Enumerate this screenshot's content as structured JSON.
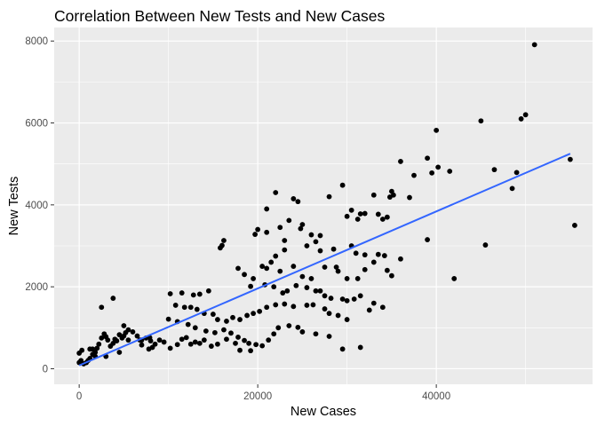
{
  "chart_data": {
    "type": "scatter",
    "title": "Correlation Between New Tests and New Cases",
    "xlabel": "New Cases",
    "ylabel": "New Tests",
    "xlim": [
      -2800,
      57500
    ],
    "ylim": [
      -380,
      8330
    ],
    "x_ticks": [
      0,
      20000,
      40000
    ],
    "x_tick_labels": [
      "0",
      "20000",
      "40000"
    ],
    "y_ticks": [
      0,
      2000,
      4000,
      6000,
      8000
    ],
    "y_tick_labels": [
      "0",
      "2000",
      "4000",
      "6000",
      "8000"
    ],
    "grid": true,
    "legend": "none",
    "colors": {
      "panel": "#ebebeb",
      "grid": "#ffffff",
      "points": "#000000",
      "trend": "#3366ff"
    },
    "trend_line": {
      "x": [
        0,
        55000
      ],
      "y": [
        80,
        5250
      ]
    },
    "points": [
      [
        7900,
        760
      ],
      [
        51000,
        7910
      ],
      [
        50000,
        6200
      ],
      [
        49500,
        6100
      ],
      [
        45000,
        6050
      ],
      [
        40000,
        5820
      ],
      [
        55000,
        5110
      ],
      [
        39000,
        5140
      ],
      [
        36000,
        5060
      ],
      [
        40200,
        4920
      ],
      [
        46500,
        4860
      ],
      [
        41500,
        4820
      ],
      [
        39500,
        4780
      ],
      [
        37500,
        4720
      ],
      [
        49000,
        4790
      ],
      [
        35000,
        4330
      ],
      [
        35200,
        4240
      ],
      [
        33000,
        4240
      ],
      [
        37000,
        4180
      ],
      [
        29500,
        4480
      ],
      [
        28000,
        4200
      ],
      [
        34800,
        4190
      ],
      [
        22000,
        4300
      ],
      [
        24000,
        4150
      ],
      [
        24500,
        4080
      ],
      [
        48500,
        4400
      ],
      [
        30500,
        3870
      ],
      [
        30000,
        3720
      ],
      [
        21000,
        3900
      ],
      [
        32000,
        3790
      ],
      [
        31500,
        3780
      ],
      [
        33500,
        3770
      ],
      [
        34500,
        3700
      ],
      [
        34000,
        3650
      ],
      [
        31200,
        3650
      ],
      [
        23500,
        3620
      ],
      [
        25000,
        3520
      ],
      [
        22500,
        3450
      ],
      [
        24800,
        3420
      ],
      [
        20000,
        3400
      ],
      [
        21000,
        3330
      ],
      [
        19700,
        3280
      ],
      [
        26000,
        3270
      ],
      [
        27000,
        3250
      ],
      [
        26500,
        3100
      ],
      [
        23000,
        3130
      ],
      [
        25500,
        3000
      ],
      [
        30500,
        3000
      ],
      [
        28500,
        2920
      ],
      [
        27000,
        2880
      ],
      [
        31000,
        2820
      ],
      [
        32000,
        2780
      ],
      [
        33500,
        2790
      ],
      [
        34200,
        2760
      ],
      [
        36000,
        2680
      ],
      [
        23000,
        2900
      ],
      [
        22000,
        2750
      ],
      [
        21500,
        2600
      ],
      [
        20500,
        2500
      ],
      [
        21000,
        2450
      ],
      [
        24000,
        2500
      ],
      [
        22500,
        2380
      ],
      [
        25000,
        2250
      ],
      [
        26000,
        2200
      ],
      [
        27500,
        2480
      ],
      [
        28800,
        2480
      ],
      [
        29000,
        2380
      ],
      [
        30000,
        2200
      ],
      [
        31200,
        2200
      ],
      [
        32000,
        2420
      ],
      [
        33000,
        2600
      ],
      [
        34500,
        2400
      ],
      [
        35000,
        2270
      ],
      [
        39000,
        3150
      ],
      [
        42000,
        2200
      ],
      [
        45500,
        3020
      ],
      [
        55500,
        3500
      ],
      [
        17800,
        2450
      ],
      [
        16200,
        3130
      ],
      [
        16000,
        3010
      ],
      [
        15800,
        2950
      ],
      [
        18500,
        2300
      ],
      [
        19500,
        2200
      ],
      [
        19200,
        2010
      ],
      [
        20800,
        2050
      ],
      [
        21800,
        2000
      ],
      [
        22800,
        1850
      ],
      [
        23300,
        1900
      ],
      [
        24300,
        2030
      ],
      [
        25500,
        1980
      ],
      [
        26500,
        1900
      ],
      [
        27000,
        1900
      ],
      [
        27500,
        1780
      ],
      [
        28200,
        1720
      ],
      [
        29500,
        1700
      ],
      [
        30000,
        1660
      ],
      [
        30800,
        1700
      ],
      [
        31500,
        1780
      ],
      [
        33000,
        1600
      ],
      [
        32500,
        1430
      ],
      [
        34000,
        1500
      ],
      [
        14500,
        1900
      ],
      [
        13500,
        1820
      ],
      [
        12800,
        1800
      ],
      [
        11500,
        1850
      ],
      [
        10200,
        1830
      ],
      [
        10800,
        1550
      ],
      [
        11800,
        1500
      ],
      [
        12500,
        1500
      ],
      [
        13200,
        1450
      ],
      [
        14000,
        1350
      ],
      [
        15000,
        1330
      ],
      [
        15500,
        1200
      ],
      [
        16500,
        1160
      ],
      [
        17200,
        1250
      ],
      [
        18000,
        1200
      ],
      [
        18800,
        1300
      ],
      [
        19500,
        1350
      ],
      [
        20200,
        1400
      ],
      [
        21000,
        1500
      ],
      [
        22000,
        1560
      ],
      [
        23000,
        1580
      ],
      [
        24000,
        1520
      ],
      [
        25500,
        1550
      ],
      [
        26200,
        1560
      ],
      [
        27500,
        1460
      ],
      [
        28000,
        1350
      ],
      [
        29000,
        1300
      ],
      [
        30000,
        1200
      ],
      [
        10000,
        1210
      ],
      [
        11000,
        1150
      ],
      [
        12200,
        1080
      ],
      [
        13000,
        1000
      ],
      [
        14200,
        920
      ],
      [
        15200,
        880
      ],
      [
        16200,
        950
      ],
      [
        17000,
        870
      ],
      [
        17800,
        770
      ],
      [
        18500,
        690
      ],
      [
        19000,
        620
      ],
      [
        19800,
        590
      ],
      [
        20500,
        560
      ],
      [
        21200,
        700
      ],
      [
        21800,
        850
      ],
      [
        22300,
        1000
      ],
      [
        23500,
        1050
      ],
      [
        24500,
        1010
      ],
      [
        25000,
        900
      ],
      [
        26500,
        850
      ],
      [
        28000,
        790
      ],
      [
        29500,
        480
      ],
      [
        31500,
        520
      ],
      [
        9000,
        700
      ],
      [
        9500,
        650
      ],
      [
        10200,
        500
      ],
      [
        11000,
        590
      ],
      [
        11500,
        720
      ],
      [
        12000,
        760
      ],
      [
        12500,
        600
      ],
      [
        13000,
        650
      ],
      [
        13500,
        620
      ],
      [
        14000,
        700
      ],
      [
        14800,
        550
      ],
      [
        15500,
        600
      ],
      [
        16500,
        720
      ],
      [
        17500,
        620
      ],
      [
        18000,
        450
      ],
      [
        19200,
        440
      ],
      [
        7800,
        480
      ],
      [
        8200,
        520
      ],
      [
        8500,
        600
      ],
      [
        8000,
        680
      ],
      [
        7500,
        750
      ],
      [
        7000,
        700
      ],
      [
        6500,
        800
      ],
      [
        6000,
        900
      ],
      [
        5500,
        950
      ],
      [
        5200,
        880
      ],
      [
        5000,
        800
      ],
      [
        4800,
        750
      ],
      [
        4500,
        830
      ],
      [
        4200,
        680
      ],
      [
        4000,
        720
      ],
      [
        3800,
        620
      ],
      [
        3500,
        550
      ],
      [
        3200,
        700
      ],
      [
        3000,
        780
      ],
      [
        2800,
        850
      ],
      [
        2500,
        750
      ],
      [
        2200,
        600
      ],
      [
        2000,
        500
      ],
      [
        1800,
        400
      ],
      [
        1500,
        350
      ],
      [
        1200,
        250
      ],
      [
        1000,
        200
      ],
      [
        800,
        150
      ],
      [
        500,
        120
      ],
      [
        200,
        200
      ],
      [
        0,
        150
      ],
      [
        300,
        450
      ],
      [
        1500,
        480
      ],
      [
        2500,
        1500
      ],
      [
        3800,
        1720
      ],
      [
        5000,
        1050
      ],
      [
        0,
        380
      ],
      [
        1200,
        480
      ],
      [
        1800,
        300
      ],
      [
        3000,
        300
      ],
      [
        4500,
        400
      ],
      [
        5500,
        700
      ],
      [
        6800,
        700
      ],
      [
        7000,
        580
      ]
    ]
  }
}
